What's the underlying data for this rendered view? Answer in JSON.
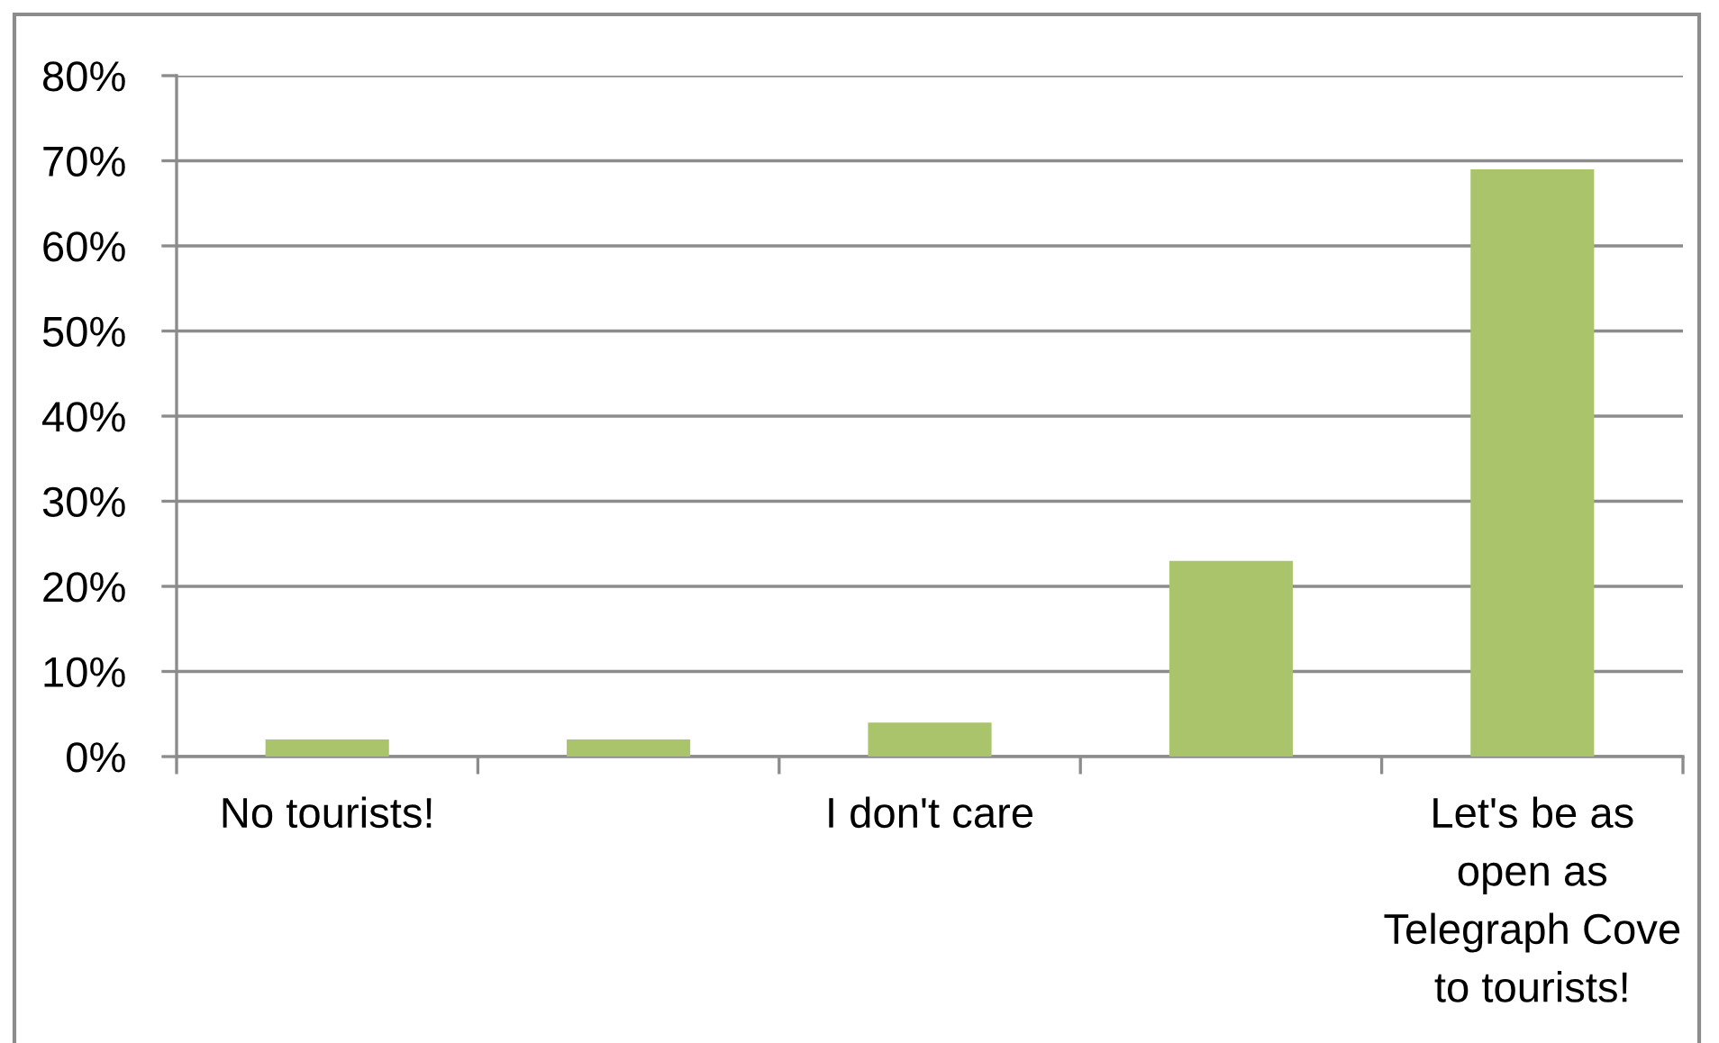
{
  "chart_data": {
    "type": "bar",
    "categories": [
      "No tourists!",
      null,
      "I don't care",
      null,
      "Let's be as\nopen as\nTelegraph Cove\nto tourists!"
    ],
    "values": [
      2,
      2,
      4,
      23,
      69
    ],
    "color": "#a9c46b",
    "ylim": [
      0,
      80
    ],
    "yticks": [
      {
        "value": 0,
        "label": "0%"
      },
      {
        "value": 10,
        "label": "10%"
      },
      {
        "value": 20,
        "label": "20%"
      },
      {
        "value": 30,
        "label": "30%"
      },
      {
        "value": 40,
        "label": "40%"
      },
      {
        "value": 50,
        "label": "50%"
      },
      {
        "value": 60,
        "label": "60%"
      },
      {
        "value": 70,
        "label": "70%"
      },
      {
        "value": 80,
        "label": "80%"
      }
    ],
    "grid": "y"
  }
}
